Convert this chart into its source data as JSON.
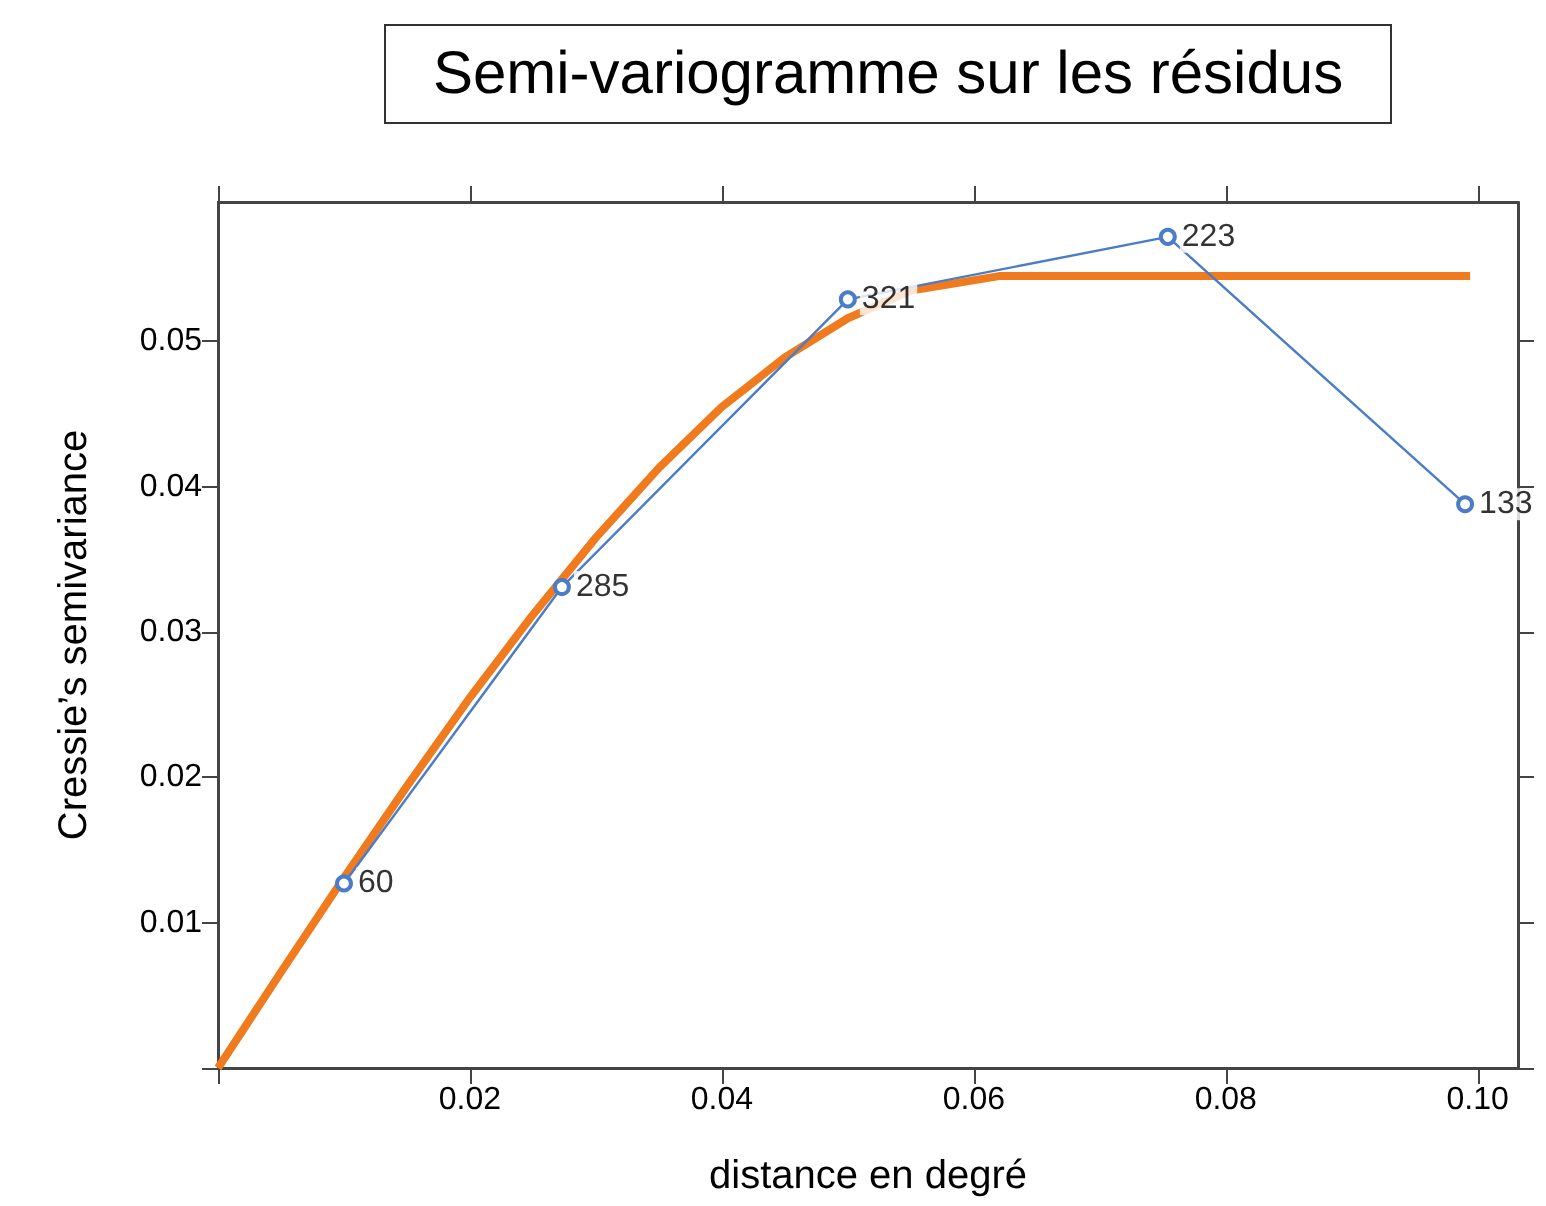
{
  "chart_data": {
    "type": "line",
    "title": "Semi-variogramme sur les résidus",
    "xlabel": "distance en degré",
    "ylabel": "Cressie’s semivariance",
    "xlim": [
      0,
      0.1032
    ],
    "ylim": [
      0,
      0.0596
    ],
    "xticks": [
      {
        "value": 0,
        "label": null
      },
      0.02,
      0.04,
      0.06,
      0.08,
      {
        "value": 0.1,
        "label": "0.10"
      }
    ],
    "yticks": [
      {
        "value": 0,
        "label": null
      },
      0.01,
      0.02,
      0.03,
      0.04,
      0.05
    ],
    "grid": false,
    "series": [
      {
        "color": "#4a7cc7",
        "marker": "circle",
        "x": [
          0.01,
          0.0273,
          0.05,
          0.0754,
          0.099
        ],
        "values": [
          0.0127,
          0.0331,
          0.0529,
          0.0572,
          0.0388
        ]
      },
      {
        "color": "#f07a1e",
        "marker": "none",
        "x": [
          0,
          0.005,
          0.01,
          0.015,
          0.02,
          0.025,
          0.03,
          0.035,
          0.04,
          0.045,
          0.05,
          0.055,
          0.062,
          0.0994
        ],
        "values": [
          0,
          0.0066,
          0.0131,
          0.0194,
          0.0255,
          0.0312,
          0.0365,
          0.0413,
          0.0455,
          0.0489,
          0.0516,
          0.0535,
          0.0545,
          0.0545
        ]
      }
    ],
    "annotations": [
      {
        "text": "60",
        "x": 0.01,
        "y": 0.0127
      },
      {
        "text": "285",
        "x": 0.0273,
        "y": 0.0331
      },
      {
        "text": "321",
        "x": 0.05,
        "y": 0.0529
      },
      {
        "text": "223",
        "x": 0.0754,
        "y": 0.0572
      },
      {
        "text": "133",
        "x": 0.099,
        "y": 0.0388
      }
    ]
  }
}
